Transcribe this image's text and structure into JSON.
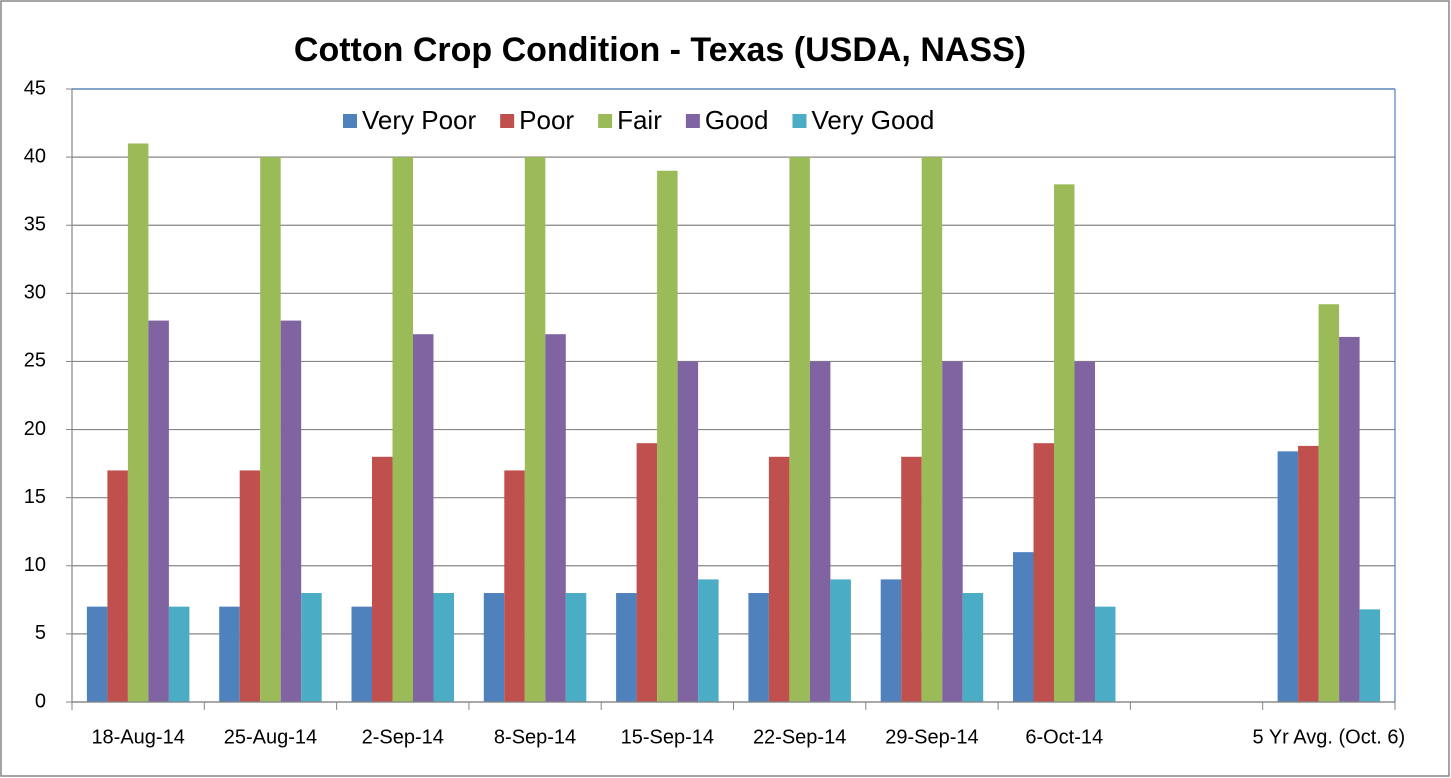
{
  "chart_data": {
    "type": "bar",
    "title": "Cotton Crop Condition - Texas (USDA, NASS)",
    "categories": [
      "18-Aug-14",
      "25-Aug-14",
      "2-Sep-14",
      "8-Sep-14",
      "15-Sep-14",
      "22-Sep-14",
      "29-Sep-14",
      "6-Oct-14",
      null,
      "5 Yr Avg. (Oct. 6)"
    ],
    "series": [
      {
        "name": "Very Poor",
        "color": "#4f81bd",
        "values": [
          7,
          7,
          7,
          8,
          8,
          8,
          9,
          11,
          null,
          18.4
        ]
      },
      {
        "name": "Poor",
        "color": "#c0504d",
        "values": [
          17,
          17,
          18,
          17,
          19,
          18,
          18,
          19,
          null,
          18.8
        ]
      },
      {
        "name": "Fair",
        "color": "#9bbb59",
        "values": [
          41,
          40,
          40,
          40,
          39,
          40,
          40,
          38,
          null,
          29.2
        ]
      },
      {
        "name": "Good",
        "color": "#8064a2",
        "values": [
          28,
          28,
          27,
          27,
          25,
          25,
          25,
          25,
          null,
          26.8
        ]
      },
      {
        "name": "Very Good",
        "color": "#4bacc6",
        "values": [
          7,
          8,
          8,
          8,
          9,
          9,
          8,
          7,
          null,
          6.8
        ]
      }
    ],
    "ylim": [
      0,
      45
    ],
    "yticks": [
      0,
      5,
      10,
      15,
      20,
      25,
      30,
      35,
      40,
      45
    ],
    "grid": true,
    "legend": "top"
  }
}
